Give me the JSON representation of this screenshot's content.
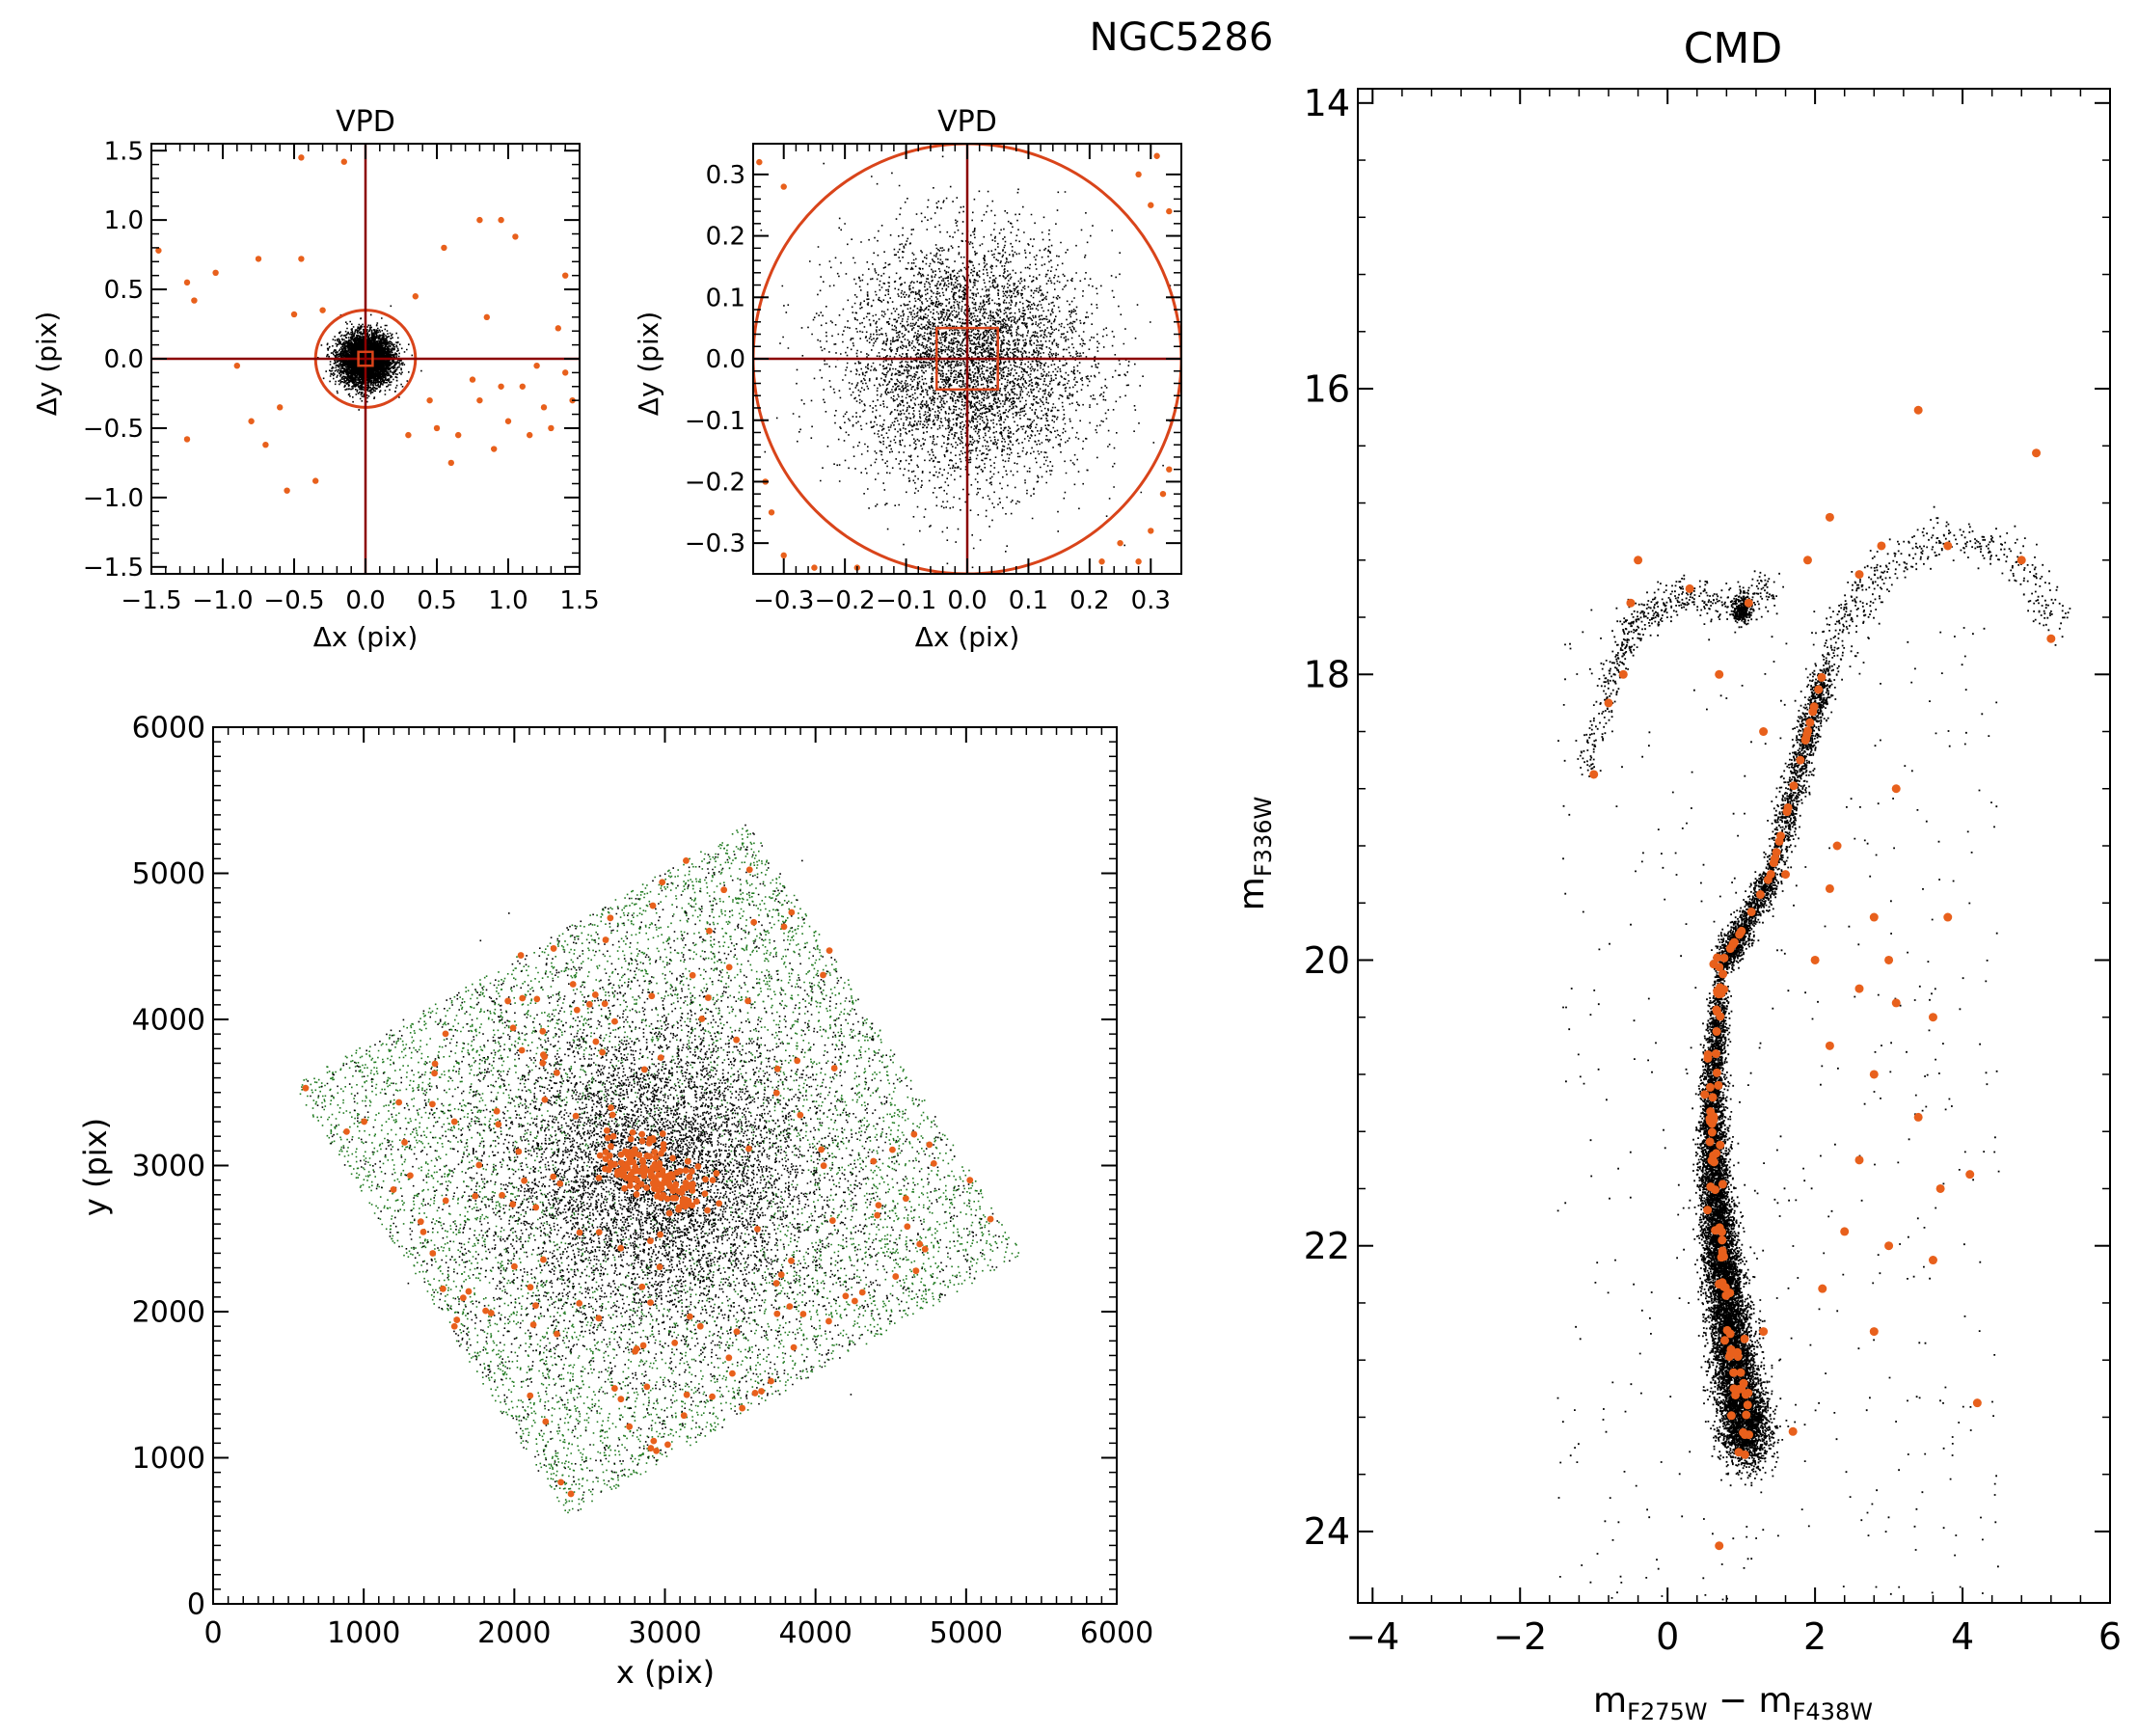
{
  "figure_title": "NGC5286",
  "colors": {
    "member": "#000000",
    "outlier": "#e8601c",
    "guide": "#8b0000",
    "selection": "#d9441a",
    "field_green": "#1f7a1f"
  },
  "chart_data": [
    {
      "id": "vpd-wide",
      "type": "scatter",
      "title": "VPD",
      "xlabel": "Δx (pix)",
      "ylabel": "Δy (pix)",
      "xlim": [
        -1.5,
        1.5
      ],
      "ylim": [
        -1.55,
        1.55
      ],
      "xticks": [
        "−1.5",
        "−1.0",
        "−0.5",
        "0.0",
        "0.5",
        "1.0",
        "1.5"
      ],
      "yticks": [
        "−1.5",
        "−1.0",
        "−0.5",
        "0.0",
        "0.5",
        "1.0",
        "1.5"
      ],
      "circle_radius": 0.35,
      "box_halfwidth": 0.05,
      "series": [
        {
          "kind": "members",
          "points": [
            [
              0.0,
              0.0,
              0.09
            ]
          ]
        },
        {
          "kind": "outliers",
          "points": [
            [
              -1.45,
              0.78
            ],
            [
              -1.25,
              0.55
            ],
            [
              -1.05,
              0.62
            ],
            [
              -1.2,
              0.42
            ],
            [
              -0.75,
              0.72
            ],
            [
              -0.45,
              1.45
            ],
            [
              -0.15,
              1.42
            ],
            [
              -0.45,
              0.72
            ],
            [
              -0.3,
              0.35
            ],
            [
              -0.5,
              0.32
            ],
            [
              0.35,
              0.45
            ],
            [
              0.55,
              0.8
            ],
            [
              0.8,
              1.0
            ],
            [
              0.95,
              1.0
            ],
            [
              1.05,
              0.88
            ],
            [
              1.4,
              0.6
            ],
            [
              0.85,
              0.3
            ],
            [
              1.35,
              0.22
            ],
            [
              -1.25,
              -0.58
            ],
            [
              -0.8,
              -0.45
            ],
            [
              -0.55,
              -0.95
            ],
            [
              -0.35,
              -0.88
            ],
            [
              -0.9,
              -0.05
            ],
            [
              -0.7,
              -0.62
            ],
            [
              0.5,
              -0.5
            ],
            [
              0.65,
              -0.55
            ],
            [
              0.8,
              -0.3
            ],
            [
              1.0,
              -0.45
            ],
            [
              1.1,
              -0.2
            ],
            [
              1.25,
              -0.35
            ],
            [
              1.4,
              -0.1
            ],
            [
              0.9,
              -0.65
            ],
            [
              0.6,
              -0.75
            ],
            [
              0.3,
              -0.55
            ],
            [
              1.15,
              -0.55
            ],
            [
              1.3,
              -0.5
            ],
            [
              0.75,
              -0.15
            ],
            [
              -0.6,
              -0.35
            ],
            [
              1.45,
              -0.3
            ],
            [
              0.45,
              -0.3
            ],
            [
              0.95,
              -0.2
            ],
            [
              1.2,
              -0.05
            ]
          ]
        }
      ]
    },
    {
      "id": "vpd-zoom",
      "type": "scatter",
      "title": "VPD",
      "xlabel": "Δx (pix)",
      "ylabel": "Δy (pix)",
      "xlim": [
        -0.35,
        0.35
      ],
      "ylim": [
        -0.35,
        0.35
      ],
      "xticks": [
        "−0.3",
        "−0.2",
        "−0.1",
        "0.0",
        "0.1",
        "0.2",
        "0.3"
      ],
      "yticks": [
        "−0.3",
        "−0.2",
        "−0.1",
        "0.0",
        "0.1",
        "0.2",
        "0.3"
      ],
      "circle_radius": 0.35,
      "box_halfwidth": 0.05,
      "series": [
        {
          "kind": "members",
          "points": [
            [
              0.0,
              0.0,
              0.1
            ]
          ]
        },
        {
          "kind": "outliers",
          "points": [
            [
              -0.34,
              0.32
            ],
            [
              -0.3,
              0.28
            ],
            [
              -0.33,
              -0.2
            ],
            [
              -0.32,
              -0.25
            ],
            [
              -0.3,
              -0.32
            ],
            [
              0.28,
              0.3
            ],
            [
              0.33,
              0.24
            ],
            [
              0.3,
              0.25
            ],
            [
              0.32,
              -0.22
            ],
            [
              0.3,
              -0.28
            ],
            [
              0.25,
              -0.3
            ],
            [
              0.22,
              -0.33
            ],
            [
              0.28,
              -0.33
            ],
            [
              0.33,
              -0.18
            ],
            [
              0.31,
              0.33
            ],
            [
              -0.25,
              -0.34
            ],
            [
              -0.18,
              -0.34
            ]
          ]
        }
      ]
    },
    {
      "id": "xy-map",
      "type": "scatter",
      "title": "",
      "xlabel": "x (pix)",
      "ylabel": "y (pix)",
      "xlim": [
        0,
        6000
      ],
      "ylim": [
        0,
        6000
      ],
      "xticks": [
        "0",
        "1000",
        "2000",
        "3000",
        "4000",
        "5000",
        "6000"
      ],
      "yticks": [
        "0",
        "1000",
        "2000",
        "3000",
        "4000",
        "5000",
        "6000"
      ],
      "field_corners": [
        [
          530,
          3550
        ],
        [
          3550,
          5350
        ],
        [
          5400,
          2250
        ],
        [
          2350,
          600
        ]
      ],
      "cluster_center": [
        2950,
        2950
      ],
      "outlier_center_cluster": [
        [
          2700,
          3100
        ],
        [
          3200,
          2750
        ]
      ]
    },
    {
      "id": "cmd",
      "type": "scatter",
      "title": "CMD",
      "xlabel": "mF275W − mF438W",
      "ylabel": "mF336W",
      "xlim": [
        -4.2,
        6.0
      ],
      "ylim": [
        24.5,
        13.9
      ],
      "xticks": [
        "−4",
        "−2",
        "0",
        "2",
        "4",
        "6"
      ],
      "yticks": [
        "14",
        "16",
        "18",
        "20",
        "22",
        "24"
      ],
      "sequences": {
        "main_sequence": [
          [
            0.75,
            20.0
          ],
          [
            0.65,
            20.5
          ],
          [
            0.6,
            21.0
          ],
          [
            0.62,
            21.5
          ],
          [
            0.7,
            22.0
          ],
          [
            0.82,
            22.5
          ],
          [
            0.95,
            23.0
          ],
          [
            1.1,
            23.4
          ]
        ],
        "subgiant_branch": [
          [
            0.75,
            20.0
          ],
          [
            1.0,
            19.8
          ],
          [
            1.4,
            19.4
          ],
          [
            1.8,
            18.6
          ],
          [
            2.1,
            18.0
          ]
        ],
        "red_giant_branch": [
          [
            2.1,
            18.0
          ],
          [
            2.4,
            17.6
          ],
          [
            3.0,
            17.2
          ],
          [
            3.8,
            17.05
          ],
          [
            4.6,
            17.1
          ],
          [
            5.3,
            17.7
          ]
        ],
        "horizontal_branch": [
          [
            -1.1,
            18.6
          ],
          [
            -0.7,
            17.9
          ],
          [
            -0.4,
            17.6
          ],
          [
            0.2,
            17.45
          ],
          [
            0.9,
            17.5
          ],
          [
            1.4,
            17.4
          ]
        ]
      },
      "outliers": [
        [
          3.4,
          16.15
        ],
        [
          5.0,
          16.45
        ],
        [
          4.8,
          17.2
        ],
        [
          3.8,
          17.1
        ],
        [
          2.9,
          17.1
        ],
        [
          2.6,
          17.3
        ],
        [
          2.2,
          16.9
        ],
        [
          1.9,
          17.2
        ],
        [
          -0.4,
          17.2
        ],
        [
          -0.5,
          17.5
        ],
        [
          0.3,
          17.4
        ],
        [
          1.1,
          17.5
        ],
        [
          -0.6,
          18.0
        ],
        [
          -0.8,
          18.2
        ],
        [
          -1.0,
          18.7
        ],
        [
          0.7,
          18.0
        ],
        [
          1.3,
          18.4
        ],
        [
          1.8,
          18.6
        ],
        [
          2.3,
          19.2
        ],
        [
          1.6,
          19.4
        ],
        [
          2.2,
          19.5
        ],
        [
          2.8,
          19.7
        ],
        [
          3.0,
          20.0
        ],
        [
          3.8,
          19.7
        ],
        [
          2.0,
          20.0
        ],
        [
          2.6,
          20.2
        ],
        [
          3.1,
          20.3
        ],
        [
          3.6,
          20.4
        ],
        [
          2.2,
          20.6
        ],
        [
          2.8,
          20.8
        ],
        [
          3.4,
          21.1
        ],
        [
          2.6,
          21.4
        ],
        [
          3.7,
          21.6
        ],
        [
          2.4,
          21.9
        ],
        [
          3.0,
          22.0
        ],
        [
          3.6,
          22.1
        ],
        [
          4.1,
          21.5
        ],
        [
          2.1,
          22.3
        ],
        [
          1.3,
          22.6
        ],
        [
          0.9,
          23.0
        ],
        [
          4.2,
          23.1
        ],
        [
          0.7,
          24.1
        ],
        [
          5.2,
          17.75
        ],
        [
          3.1,
          18.8
        ],
        [
          1.7,
          23.3
        ],
        [
          2.8,
          22.6
        ]
      ]
    }
  ]
}
